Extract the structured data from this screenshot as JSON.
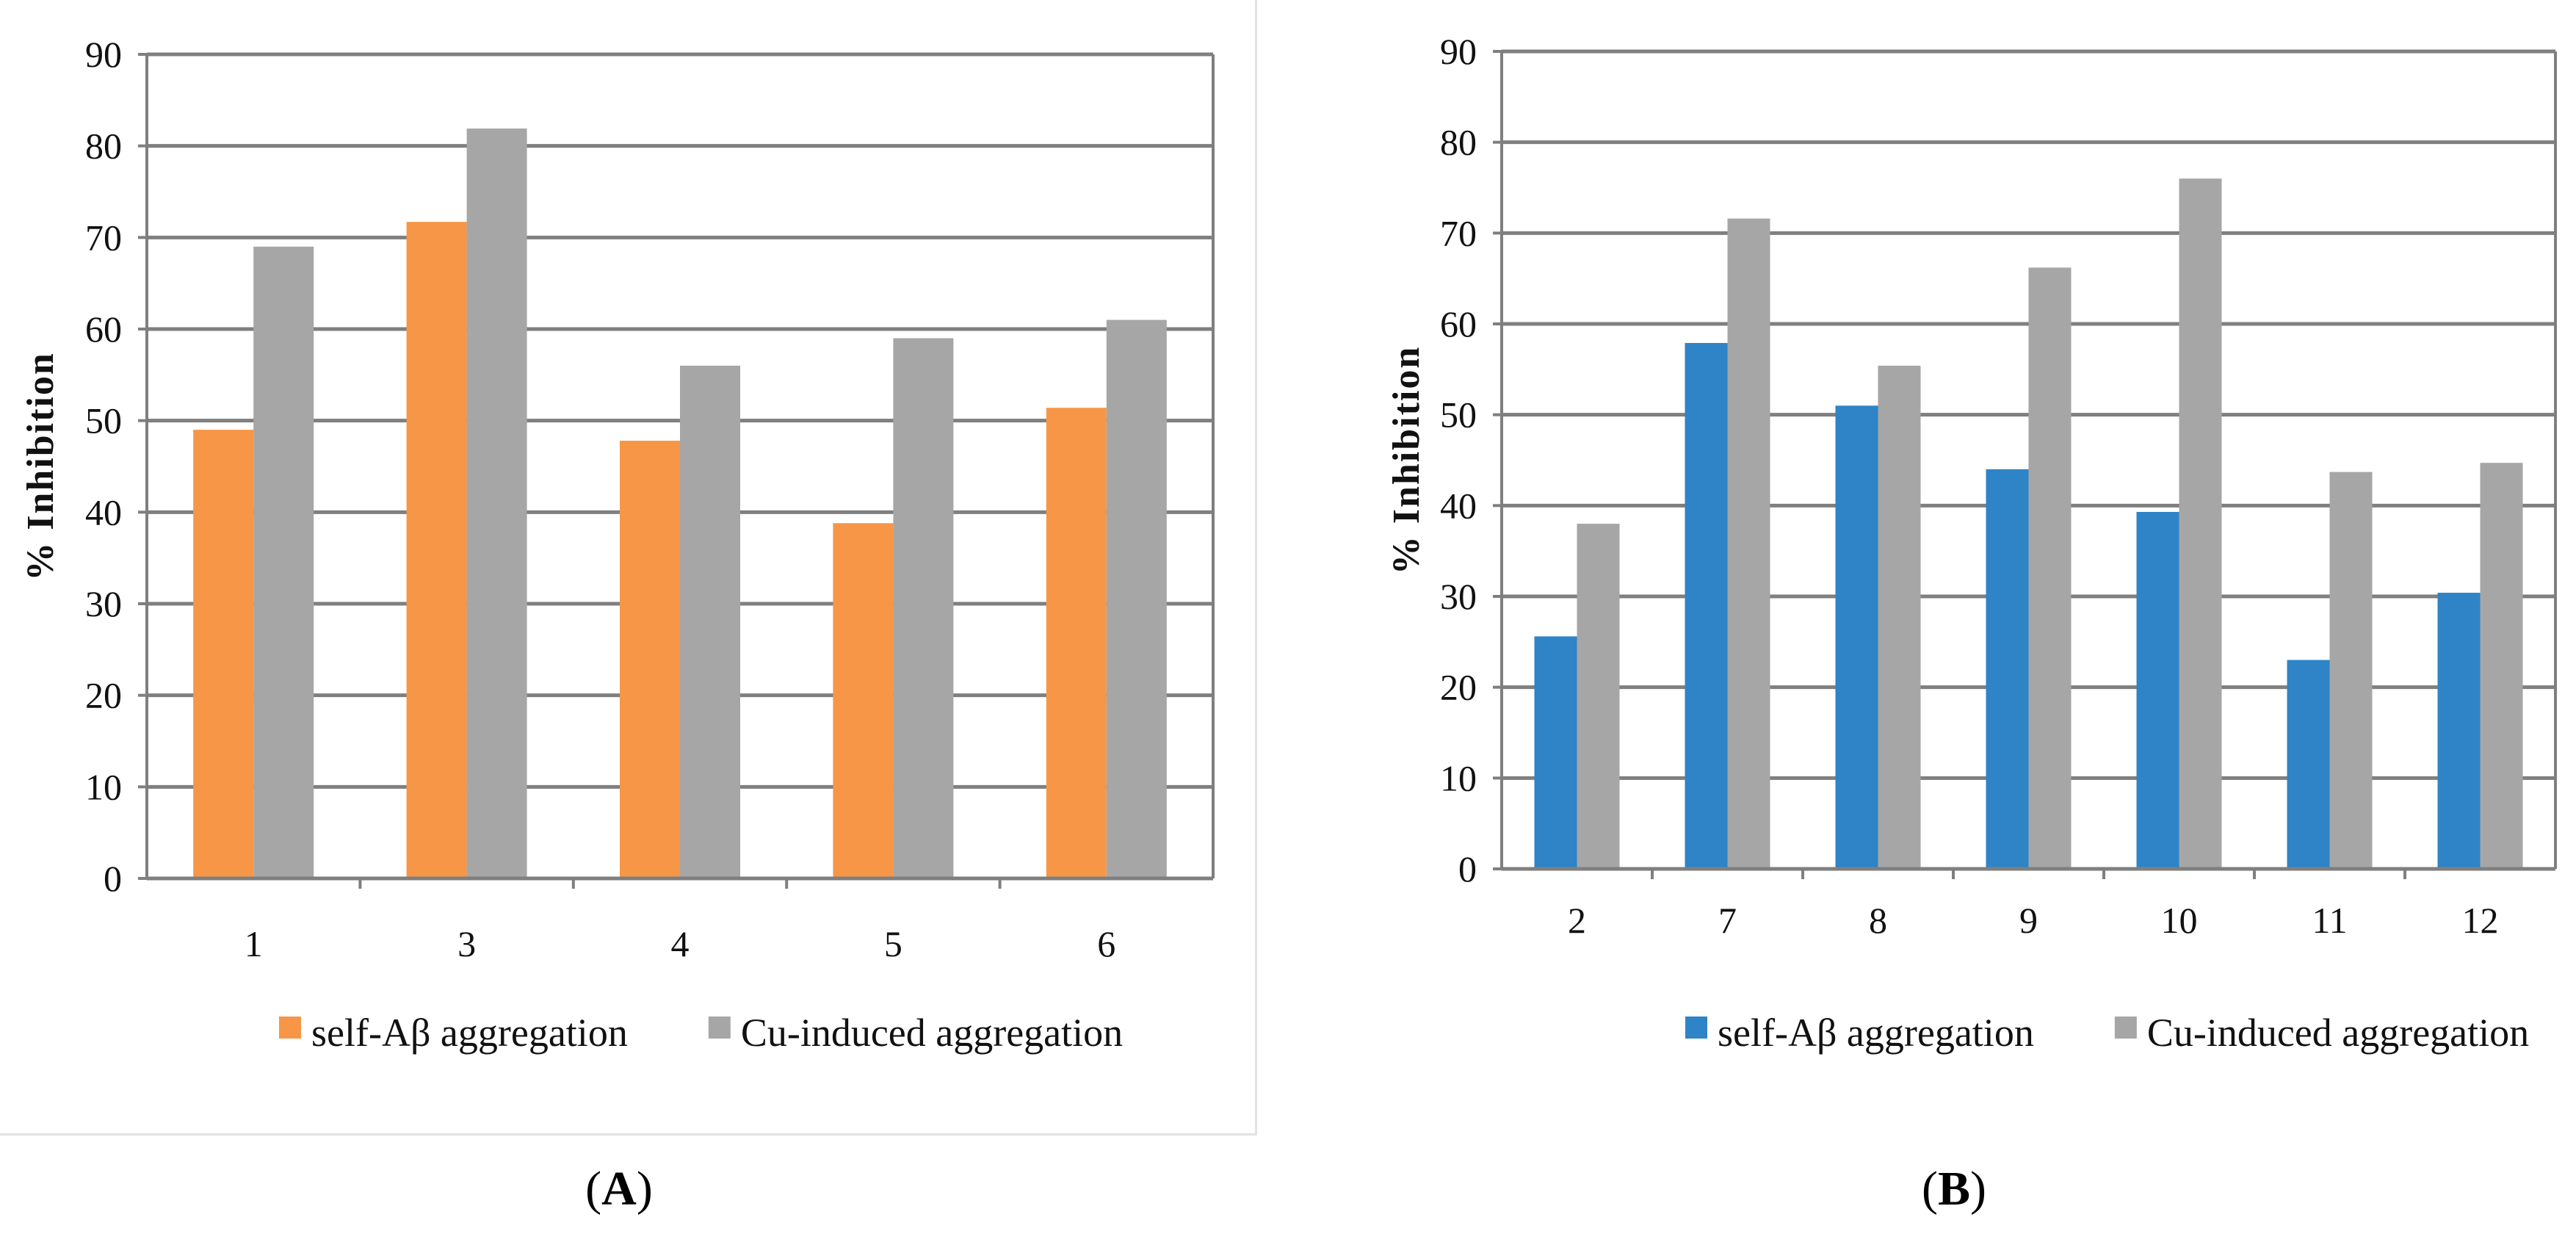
{
  "figure": {
    "panel_labels": [
      "A",
      "B"
    ]
  },
  "chart_data": [
    {
      "id": "A",
      "type": "bar",
      "title": "",
      "xlabel": "",
      "ylabel": "% Inhibition",
      "ylim": [
        0,
        90
      ],
      "ytick_step": 10,
      "grid": true,
      "legend_position": "bottom",
      "categories": [
        "1",
        "3",
        "4",
        "5",
        "6"
      ],
      "series": [
        {
          "name": "self-Aβ aggregation",
          "color": "#F79646",
          "values": [
            49,
            71.7,
            47.8,
            38.8,
            51.4
          ]
        },
        {
          "name": "Cu-induced aggregation",
          "color": "#A6A6A6",
          "values": [
            69,
            81.9,
            56,
            59,
            61
          ]
        }
      ]
    },
    {
      "id": "B",
      "type": "bar",
      "title": "",
      "xlabel": "",
      "ylabel": "% Inhibition",
      "ylim": [
        0,
        90
      ],
      "ytick_step": 10,
      "grid": true,
      "legend_position": "bottom",
      "categories": [
        "2",
        "7",
        "8",
        "9",
        "10",
        "11",
        "12"
      ],
      "series": [
        {
          "name": "self-Aβ aggregation",
          "color": "#2E84C6",
          "values": [
            25.6,
            57.9,
            51,
            44,
            39.3,
            23,
            30.4
          ]
        },
        {
          "name": "Cu-induced aggregation",
          "color": "#A6A6A6",
          "values": [
            38,
            71.6,
            55.4,
            66.2,
            76,
            43.7,
            44.7
          ]
        }
      ]
    }
  ]
}
